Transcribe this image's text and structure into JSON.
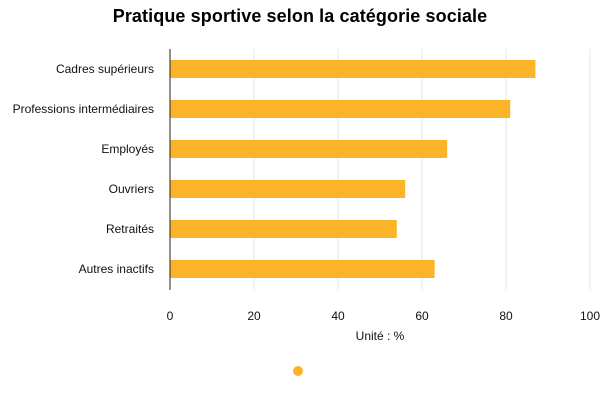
{
  "chart_data": {
    "type": "bar",
    "orientation": "horizontal",
    "title": "Pratique sportive selon la catégorie sociale",
    "categories": [
      "Cadres supérieurs",
      "Professions intermédiaires",
      "Employés",
      "Ouvriers",
      "Retraités",
      "Autres inactifs"
    ],
    "series": [
      {
        "values": [
          87,
          81,
          66,
          56,
          54,
          63
        ]
      }
    ],
    "xlabel": "Unité : %",
    "xlim": [
      0,
      100
    ],
    "xticks": [
      "0",
      "20",
      "40",
      "60",
      "80",
      "100"
    ],
    "grid": "vertical",
    "legend": "bottom",
    "bar_color": "#FBB327"
  }
}
